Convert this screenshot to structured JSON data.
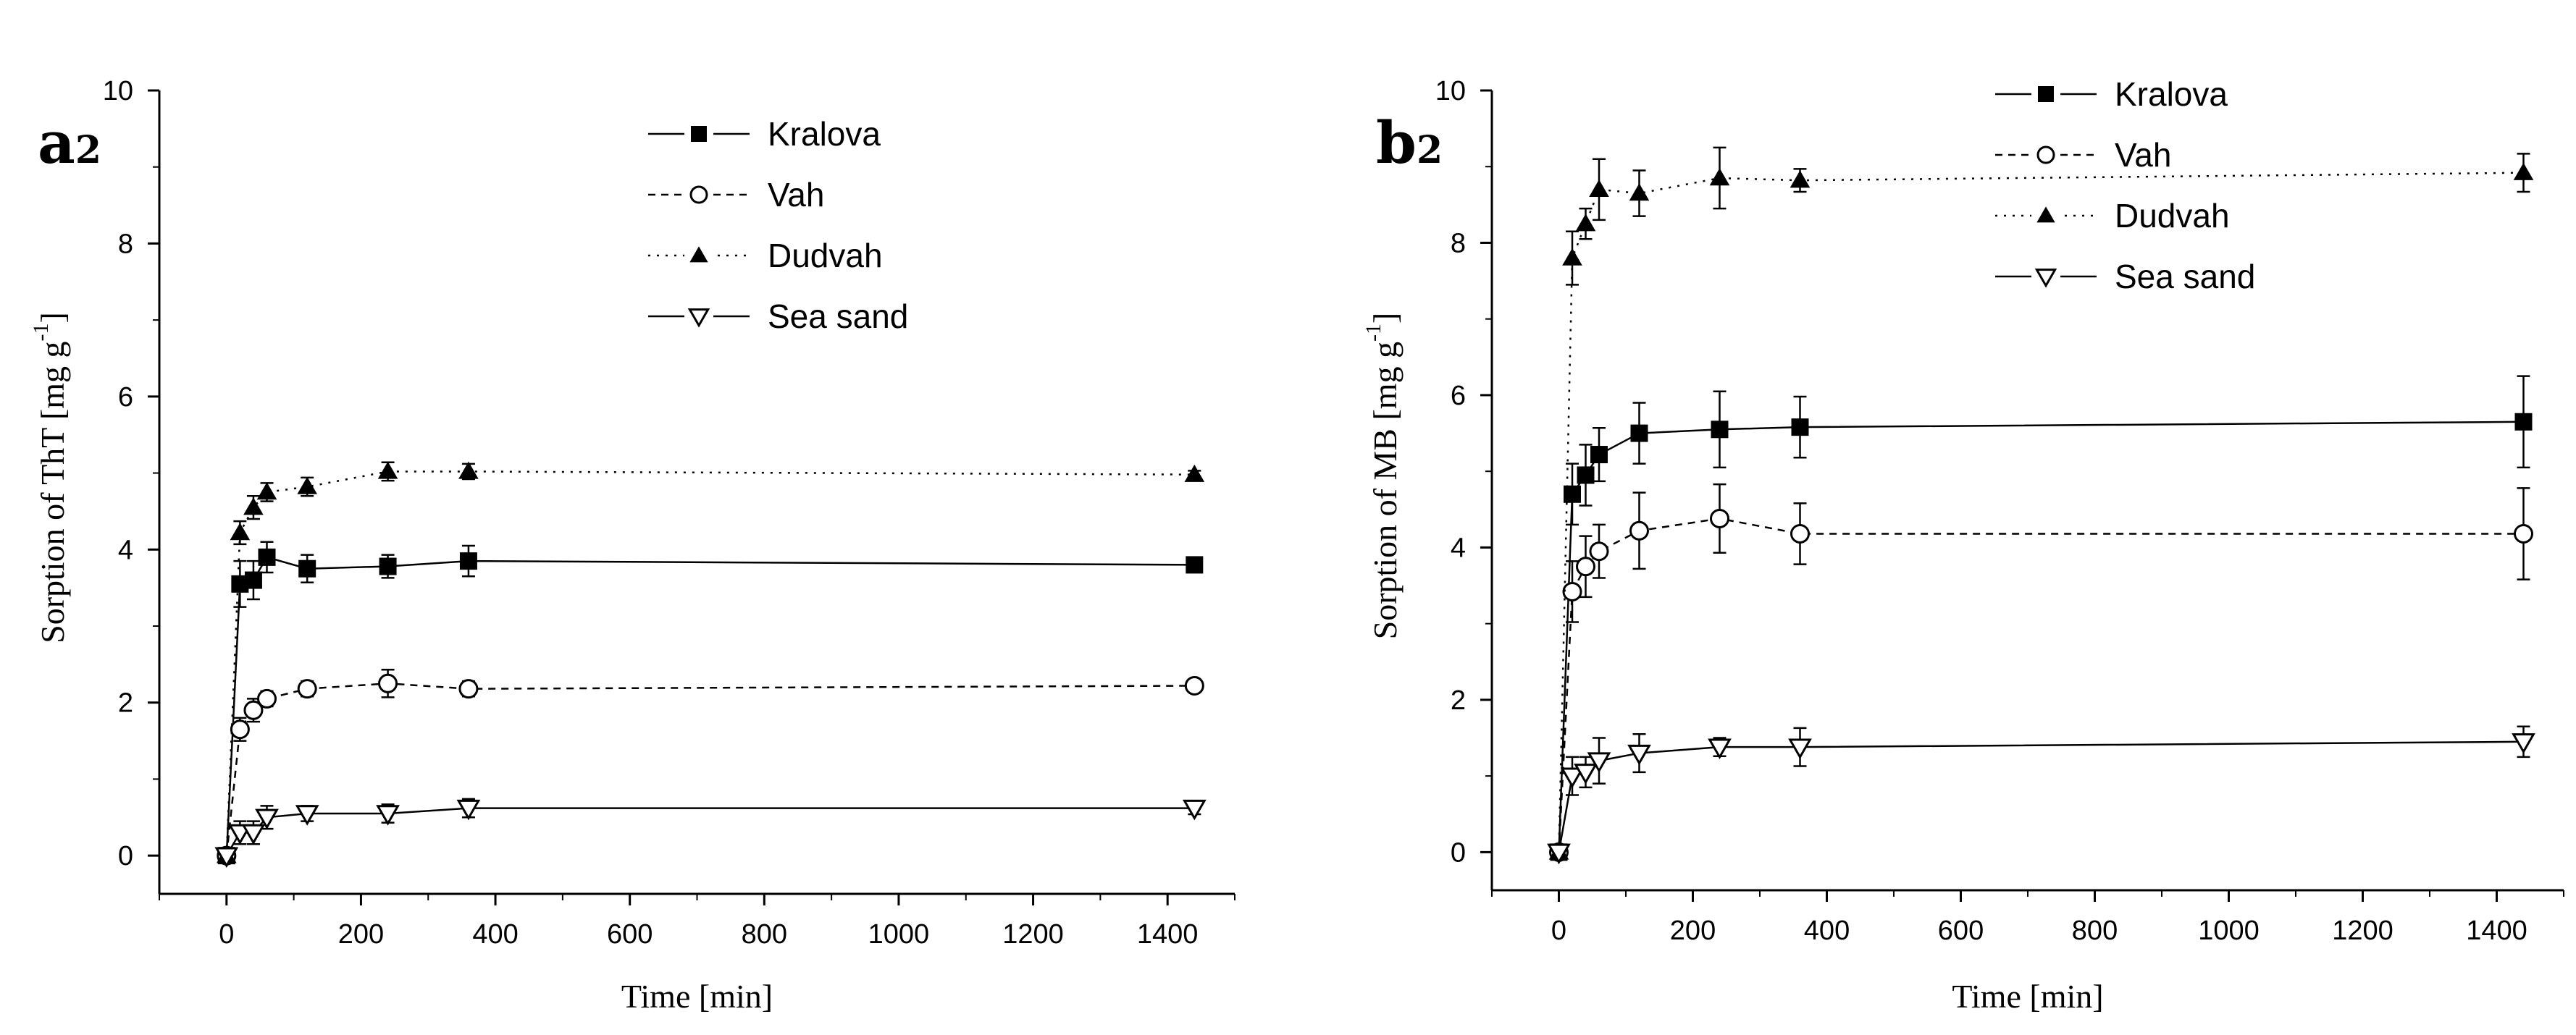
{
  "chart_data": [
    {
      "type": "line",
      "panel_label": "a",
      "panel_sub": "2",
      "xlabel": "Time [min]",
      "ylabel": "Sorption of ThT [mg g",
      "ylabel_sup": "-1",
      "ylabel_end": "]",
      "xlim": [
        -100,
        1500
      ],
      "ylim": [
        -0.5,
        10
      ],
      "xticks": [
        0,
        200,
        400,
        600,
        800,
        1000,
        1200,
        1400
      ],
      "yticks": [
        0,
        2,
        4,
        6,
        8,
        10
      ],
      "x": [
        0,
        20,
        40,
        60,
        120,
        240,
        360,
        1440
      ],
      "series": [
        {
          "name": "Kralova",
          "marker": "square-filled",
          "line": "solid",
          "values": [
            0,
            3.55,
            3.6,
            3.9,
            3.75,
            3.78,
            3.85,
            3.8
          ],
          "errors": [
            0,
            0.3,
            0.25,
            0.2,
            0.18,
            0.15,
            0.2,
            0.08
          ]
        },
        {
          "name": "Vah",
          "marker": "circle-open",
          "line": "dashed",
          "values": [
            0,
            1.65,
            1.9,
            2.05,
            2.18,
            2.25,
            2.18,
            2.22
          ],
          "errors": [
            0,
            0.15,
            0.15,
            0.1,
            0.1,
            0.18,
            0.1,
            0.05
          ]
        },
        {
          "name": "Dudvah",
          "marker": "triangle-up-filled",
          "line": "dotted",
          "values": [
            0,
            4.22,
            4.55,
            4.75,
            4.82,
            5.02,
            5.02,
            4.98
          ],
          "errors": [
            0,
            0.15,
            0.15,
            0.12,
            0.12,
            0.12,
            0.1,
            0.05
          ]
        },
        {
          "name": "Sea sand",
          "marker": "triangle-down-open",
          "line": "solid",
          "values": [
            0,
            0.3,
            0.3,
            0.5,
            0.55,
            0.55,
            0.62,
            0.62
          ],
          "errors": [
            0,
            0.15,
            0.15,
            0.15,
            0.1,
            0.12,
            0.12,
            0.08
          ]
        }
      ]
    },
    {
      "type": "line",
      "panel_label": "b",
      "panel_sub": "2",
      "xlabel": "Time [min]",
      "ylabel": "Sorption of MB [mg g",
      "ylabel_sup": "-1",
      "ylabel_end": "]",
      "xlim": [
        -100,
        1500
      ],
      "ylim": [
        -0.5,
        10
      ],
      "xticks": [
        0,
        200,
        400,
        600,
        800,
        1000,
        1200,
        1400
      ],
      "yticks": [
        0,
        2,
        4,
        6,
        8,
        10
      ],
      "x": [
        0,
        20,
        40,
        60,
        120,
        240,
        360,
        1440
      ],
      "series": [
        {
          "name": "Kralova",
          "marker": "square-filled",
          "line": "solid",
          "values": [
            0,
            4.7,
            4.95,
            5.22,
            5.5,
            5.55,
            5.58,
            5.65
          ],
          "errors": [
            0,
            0.4,
            0.4,
            0.35,
            0.4,
            0.5,
            0.4,
            0.6
          ]
        },
        {
          "name": "Vah",
          "marker": "circle-open",
          "line": "dashed",
          "values": [
            0,
            3.42,
            3.75,
            3.95,
            4.22,
            4.38,
            4.18,
            4.18
          ],
          "errors": [
            0,
            0.4,
            0.4,
            0.35,
            0.5,
            0.45,
            0.4,
            0.6
          ]
        },
        {
          "name": "Dudvah",
          "marker": "triangle-up-filled",
          "line": "dotted",
          "values": [
            0,
            7.8,
            8.25,
            8.7,
            8.65,
            8.85,
            8.82,
            8.92
          ],
          "errors": [
            0,
            0.35,
            0.2,
            0.4,
            0.3,
            0.4,
            0.15,
            0.25
          ]
        },
        {
          "name": "Sea sand",
          "marker": "triangle-down-open",
          "line": "solid",
          "values": [
            0,
            1.0,
            1.05,
            1.2,
            1.3,
            1.38,
            1.38,
            1.45
          ],
          "errors": [
            0,
            0.25,
            0.2,
            0.3,
            0.25,
            0.12,
            0.25,
            0.2
          ]
        }
      ]
    }
  ]
}
